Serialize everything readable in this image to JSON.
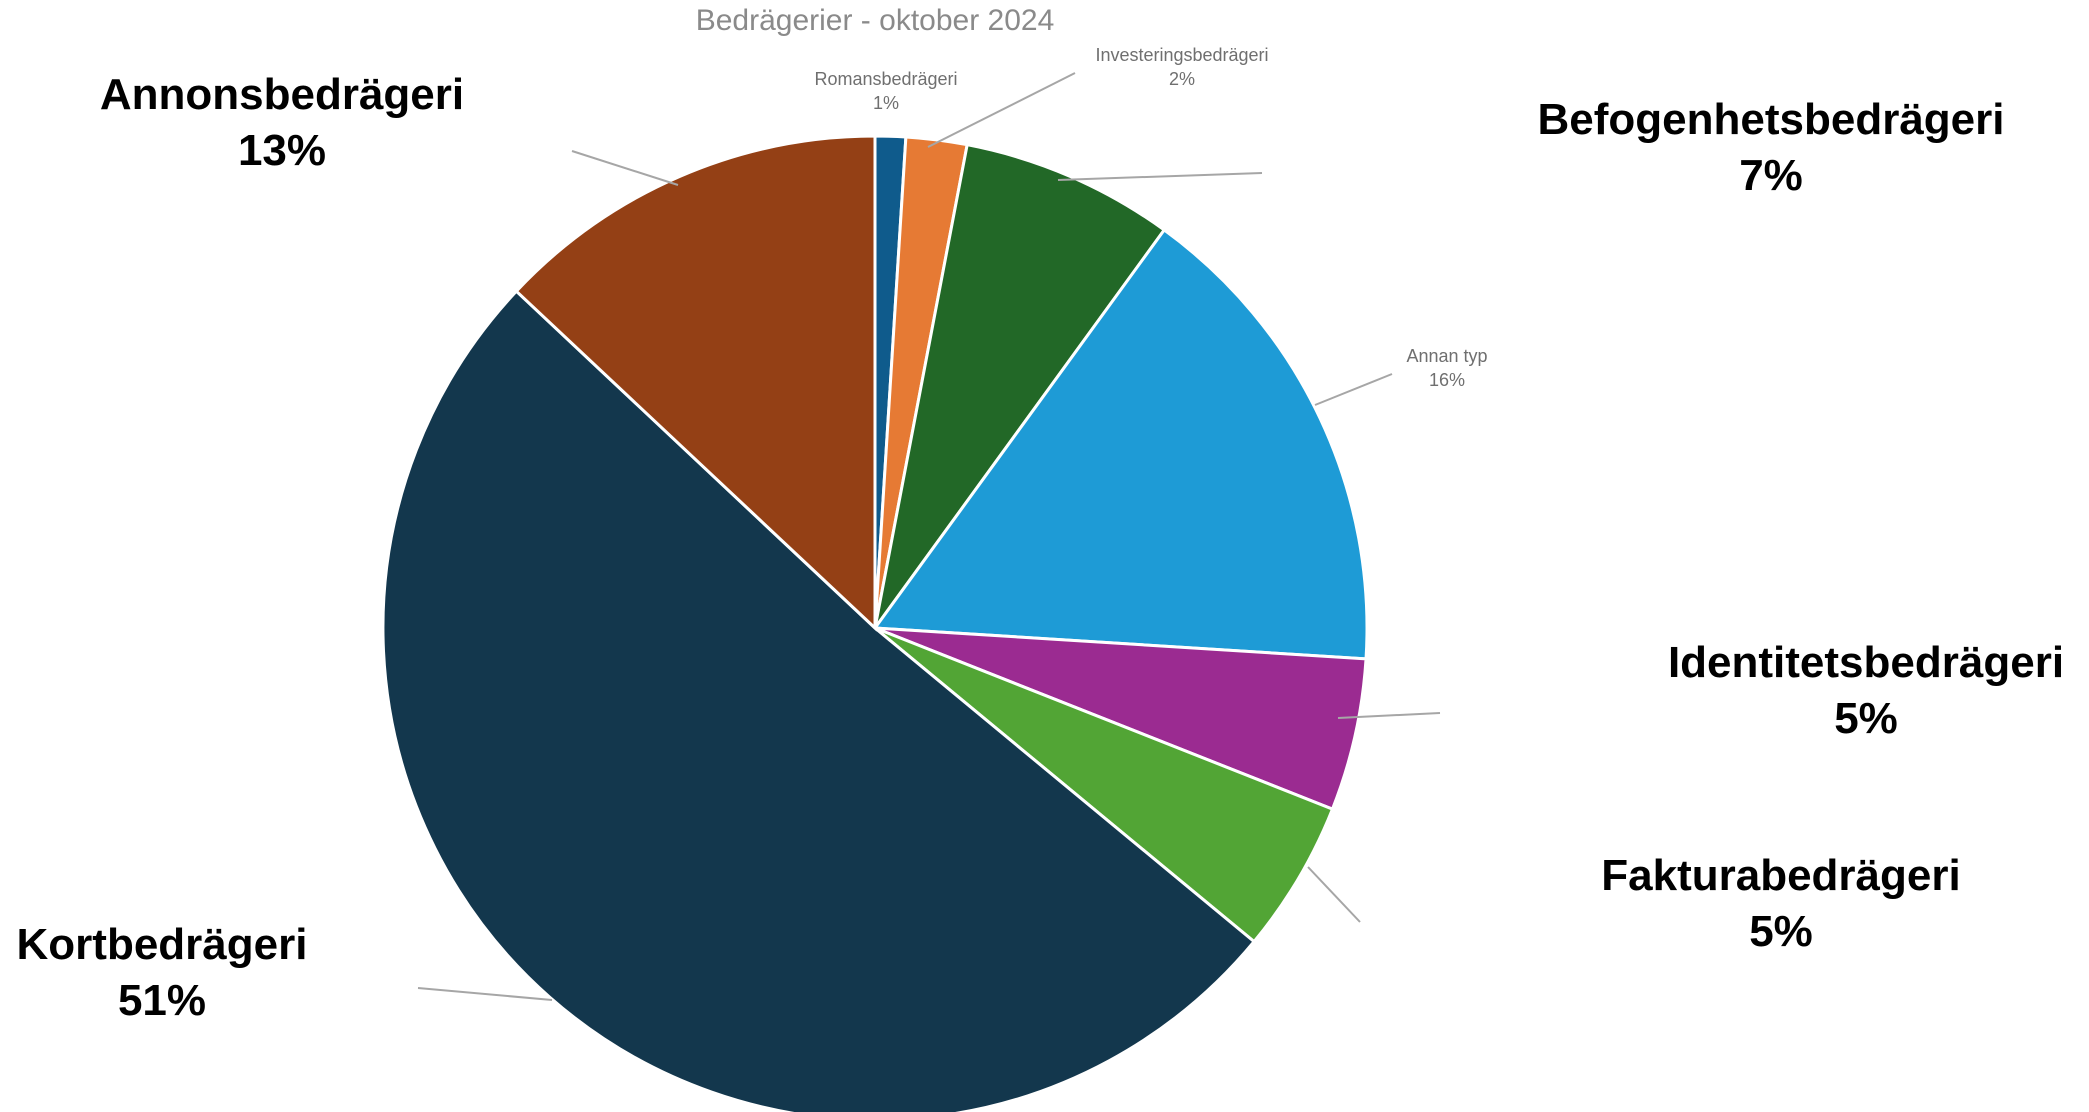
{
  "chart_data": {
    "type": "pie",
    "title": "Bedrägerier - oktober 2024",
    "slices": [
      {
        "label": "Romansbedrägeri",
        "value": 1,
        "value_label": "1%",
        "color": "#0f5b8c",
        "label_style": "small"
      },
      {
        "label": "Investeringsbedrägeri",
        "value": 2,
        "value_label": "2%",
        "color": "#e67a34",
        "label_style": "small"
      },
      {
        "label": "Befogenhetsbedrägeri",
        "value": 7,
        "value_label": "7%",
        "color": "#226827",
        "label_style": "large"
      },
      {
        "label": "Annan typ",
        "value": 16,
        "value_label": "16%",
        "color": "#1e9bd6",
        "label_style": "small"
      },
      {
        "label": "Identitetsbedrägeri",
        "value": 5,
        "value_label": "5%",
        "color": "#9b2b91",
        "label_style": "large"
      },
      {
        "label": "Fakturabedrägeri",
        "value": 5,
        "value_label": "5%",
        "color": "#52a535",
        "label_style": "large"
      },
      {
        "label": "Kortbedrägeri",
        "value": 51,
        "value_label": "51%",
        "color": "#13374d",
        "label_style": "large"
      },
      {
        "label": "Annonsbedrägeri",
        "value": 13,
        "value_label": "13%",
        "color": "#944015",
        "label_style": "large"
      }
    ],
    "start": "12 o'clock",
    "direction": "clockwise",
    "legend": "none"
  }
}
